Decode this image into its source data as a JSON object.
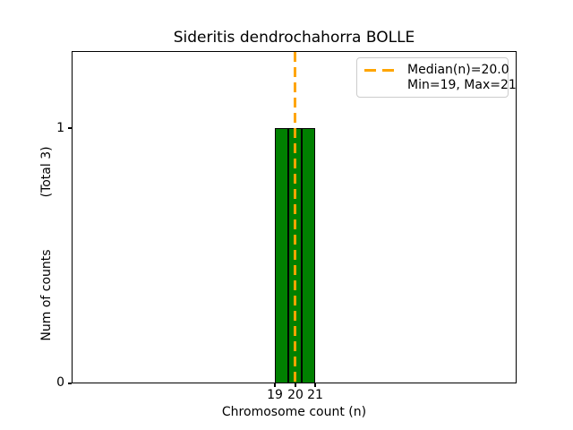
{
  "title": "Sideritis dendrochahorra BOLLE",
  "axes": {
    "xlabel": "Chromosome count (n)",
    "ylabel_counts": "Num of counts",
    "ylabel_total": "(Total 3)",
    "xtick_labels": [
      "19",
      "20",
      "21"
    ],
    "ytick_labels": [
      "0",
      "1"
    ]
  },
  "legend": {
    "items": [
      {
        "label": "Median(n)=20.0",
        "marker": "orange-dashed-line"
      },
      {
        "label": "Min=19, Max=21",
        "marker": "none"
      }
    ]
  },
  "colors": {
    "bar_fill": "#008000",
    "bar_edge": "#000000",
    "median_line": "#FFA500",
    "legend_border": "#cccccc",
    "text": "#000000",
    "background": "#ffffff"
  },
  "chart_data": {
    "type": "bar",
    "subtype": "histogram",
    "title": "Sideritis dendrochahorra BOLLE",
    "xlabel": "Chromosome count (n)",
    "ylabel": "Num of counts    (Total 3)",
    "total_counts": 3,
    "bin_edges": [
      19.0,
      19.667,
      20.333,
      21.0
    ],
    "values": [
      1,
      1,
      1
    ],
    "median": 20.0,
    "min": 19,
    "max": 21,
    "xticks": [
      19,
      20,
      21
    ],
    "yticks": [
      0,
      1
    ],
    "xlim": [
      9,
      31
    ],
    "ylim": [
      0,
      1.3
    ],
    "median_line_style": "vertical-dashed",
    "legend_position": "upper right",
    "grid": false
  }
}
